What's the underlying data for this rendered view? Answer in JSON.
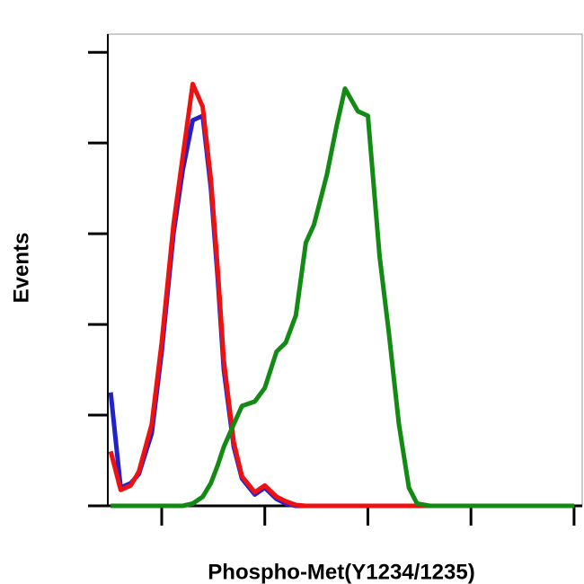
{
  "chart_data": {
    "type": "line",
    "x_label": "Phospho-Met(Y1234/1235)",
    "y_label": "Events",
    "x": [
      32,
      40,
      50,
      60,
      80,
      100,
      130,
      160,
      200,
      250,
      300,
      350,
      400,
      500,
      600,
      800,
      1000,
      1300,
      1600,
      2000,
      2500,
      3000,
      4000,
      5000,
      6000,
      8000,
      10000,
      13000,
      16000,
      20000,
      25000,
      30000,
      40000,
      50000,
      70000,
      100000,
      200000,
      500000,
      1000000
    ],
    "series": [
      {
        "color": "#2222cc",
        "values": [
          25,
          4,
          5,
          7,
          16,
          34,
          60,
          74,
          85,
          86,
          70,
          50,
          30,
          13,
          6,
          2.5,
          4,
          1.5,
          0.5,
          0,
          0,
          0,
          0,
          0,
          0,
          0,
          0,
          0,
          0,
          0,
          0,
          0,
          0,
          0,
          0,
          0,
          0,
          0,
          0
        ]
      },
      {
        "color": "#ee1111",
        "values": [
          12,
          3.5,
          4.5,
          7.5,
          18,
          36,
          62,
          77,
          93,
          88,
          72,
          52,
          32,
          14,
          6.5,
          3,
          4.5,
          2,
          1,
          0.2,
          0,
          0,
          0,
          0,
          0,
          0,
          0,
          0,
          0,
          0,
          0,
          0,
          0,
          0,
          0,
          0,
          0,
          0,
          0
        ]
      },
      {
        "color": "#138a13",
        "values": [
          0,
          0,
          0,
          0,
          0,
          0,
          0,
          0,
          0.5,
          2,
          5,
          9,
          13,
          18,
          22,
          23,
          26,
          34,
          36,
          42,
          58,
          62,
          73,
          84,
          92,
          87,
          86,
          55,
          38,
          18,
          4,
          0.5,
          0,
          0,
          0,
          0,
          0,
          0,
          0
        ]
      }
    ],
    "xscale": "log",
    "xlim": [
      30,
      1200000
    ],
    "xticks": [
      100,
      1000,
      10000,
      100000,
      1000000
    ],
    "ylim": [
      0,
      104
    ],
    "yticks": [
      0,
      20,
      40,
      60,
      80,
      100
    ]
  }
}
